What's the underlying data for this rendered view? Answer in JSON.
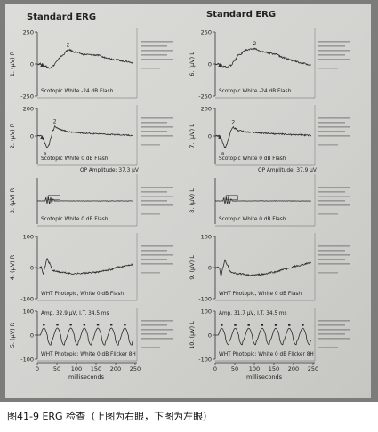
{
  "caption": "图41-9 ERG 检查（上图为右眼，下图为左眼）",
  "eyes": [
    {
      "title": "Standard ERG",
      "panels": [
        {
          "ylabel": "1. (µV) R",
          "label": "Scotopic  White -24 dB Flash"
        },
        {
          "ylabel": "2. (µV) R",
          "label": "Scotopic  White 0 dB Flash",
          "extra": "OP Amplitude: 37.3 µV"
        },
        {
          "ylabel": "3. (µV) R",
          "label": "Scotopic  White 0 dB Flash"
        },
        {
          "ylabel": "4. (µV) R",
          "label": "WHT Photopic,  White 0 dB Flash"
        },
        {
          "ylabel": "5. (µV) R",
          "label": "WHT Photopic:  White 0 dB Flicker 8H",
          "extra": "Amp.  32.9 µV,  I.T.  34.5 ms"
        }
      ]
    },
    {
      "title": "Standard ERG",
      "panels": [
        {
          "ylabel": "6. (µV) L",
          "label": "Scotopic  White -24 dB Flash"
        },
        {
          "ylabel": "7. (µV) L",
          "label": "Scotopic  White 0 dB Flash",
          "extra": "OP Amplitude: 37.9 µV"
        },
        {
          "ylabel": "8. (µV) L",
          "label": "Scotopic  White 0 dB Flash"
        },
        {
          "ylabel": "9. (µV) L",
          "label": "WHT Photopic,  White 0 dB Flash"
        },
        {
          "ylabel": "10. (µV) L",
          "label": "WHT Photopic:  White 0 dB Flicker 8H",
          "extra": "Amp.  31.7 µV,  I.T.  34.5 ms"
        }
      ]
    }
  ],
  "chart_data": {
    "type": "line",
    "xlabel": "milliseconds",
    "xlim": [
      0,
      250
    ],
    "x_ticks": [
      0,
      50,
      100,
      150,
      200,
      250
    ],
    "panels": [
      {
        "id": 1,
        "eye": "right",
        "ylim": [
          -250,
          250
        ],
        "y_ticks": [
          250,
          0,
          -250
        ],
        "kind": "scotopic_dim",
        "x": [
          0,
          10,
          20,
          30,
          40,
          50,
          60,
          80,
          100,
          120,
          150,
          175,
          200,
          225,
          245
        ],
        "y": [
          0,
          0,
          -15,
          -30,
          -15,
          20,
          60,
          110,
          90,
          75,
          70,
          50,
          35,
          20,
          10
        ]
      },
      {
        "id": 2,
        "eye": "right",
        "ylim": [
          -200,
          200
        ],
        "y_ticks": [
          200,
          0
        ],
        "kind": "scotopic_bright",
        "x": [
          0,
          10,
          15,
          20,
          25,
          30,
          35,
          40,
          45,
          50,
          60,
          80,
          100,
          130,
          160,
          200,
          245
        ],
        "y": [
          0,
          0,
          -20,
          -60,
          -90,
          -60,
          -10,
          40,
          70,
          60,
          45,
          30,
          25,
          20,
          15,
          10,
          5
        ]
      },
      {
        "id": 3,
        "eye": "right",
        "ylim": [
          -100,
          100
        ],
        "y_ticks": [],
        "kind": "oscillatory",
        "x": [
          0,
          20,
          22,
          25,
          28,
          31,
          34,
          37,
          40,
          45,
          60,
          100,
          150,
          200,
          245
        ],
        "y": [
          0,
          0,
          15,
          -12,
          18,
          -14,
          16,
          -10,
          8,
          0,
          0,
          0,
          0,
          0,
          0
        ]
      },
      {
        "id": 4,
        "eye": "right",
        "ylim": [
          -100,
          100
        ],
        "y_ticks": [
          100,
          0,
          -100
        ],
        "kind": "photopic",
        "x": [
          0,
          10,
          15,
          20,
          25,
          30,
          40,
          60,
          90,
          120,
          150,
          180,
          210,
          245
        ],
        "y": [
          0,
          0,
          -20,
          5,
          30,
          15,
          -10,
          -15,
          -20,
          -18,
          -15,
          -8,
          2,
          10
        ]
      },
      {
        "id": 5,
        "eye": "right",
        "ylim": [
          -100,
          100
        ],
        "y_ticks": [
          100,
          0,
          -100
        ],
        "kind": "flicker",
        "period_ms": 34.5,
        "amp_uv": 32.9
      },
      {
        "id": 6,
        "eye": "left",
        "ylim": [
          -250,
          250
        ],
        "y_ticks": [
          250,
          0,
          -250
        ],
        "kind": "scotopic_dim",
        "x": [
          0,
          10,
          20,
          30,
          40,
          50,
          60,
          80,
          100,
          120,
          150,
          175,
          200,
          225,
          245
        ],
        "y": [
          0,
          0,
          -15,
          -25,
          -10,
          30,
          70,
          110,
          120,
          95,
          80,
          50,
          25,
          5,
          -10
        ]
      },
      {
        "id": 7,
        "eye": "left",
        "ylim": [
          -200,
          200
        ],
        "y_ticks": [
          200,
          0
        ],
        "kind": "scotopic_bright",
        "x": [
          0,
          10,
          15,
          20,
          25,
          30,
          35,
          40,
          45,
          50,
          60,
          80,
          100,
          130,
          160,
          200,
          245
        ],
        "y": [
          0,
          0,
          -20,
          -55,
          -85,
          -55,
          -10,
          40,
          65,
          55,
          40,
          30,
          25,
          20,
          15,
          10,
          5
        ]
      },
      {
        "id": 8,
        "eye": "left",
        "ylim": [
          -100,
          100
        ],
        "y_ticks": [],
        "kind": "oscillatory",
        "x": [
          0,
          20,
          22,
          25,
          28,
          31,
          34,
          37,
          40,
          45,
          60,
          100,
          150,
          200,
          245
        ],
        "y": [
          0,
          0,
          15,
          -12,
          18,
          -14,
          16,
          -10,
          8,
          0,
          0,
          0,
          0,
          0,
          0
        ]
      },
      {
        "id": 9,
        "eye": "left",
        "ylim": [
          -100,
          100
        ],
        "y_ticks": [
          100,
          0,
          -100
        ],
        "kind": "photopic",
        "x": [
          0,
          10,
          15,
          20,
          25,
          30,
          40,
          60,
          90,
          120,
          150,
          180,
          210,
          245
        ],
        "y": [
          0,
          0,
          -25,
          0,
          25,
          10,
          -15,
          -20,
          -25,
          -22,
          -15,
          -5,
          5,
          15
        ]
      },
      {
        "id": 10,
        "eye": "left",
        "ylim": [
          -100,
          100
        ],
        "y_ticks": [
          100,
          0,
          -100
        ],
        "kind": "flicker",
        "period_ms": 34.5,
        "amp_uv": 31.7
      }
    ]
  }
}
